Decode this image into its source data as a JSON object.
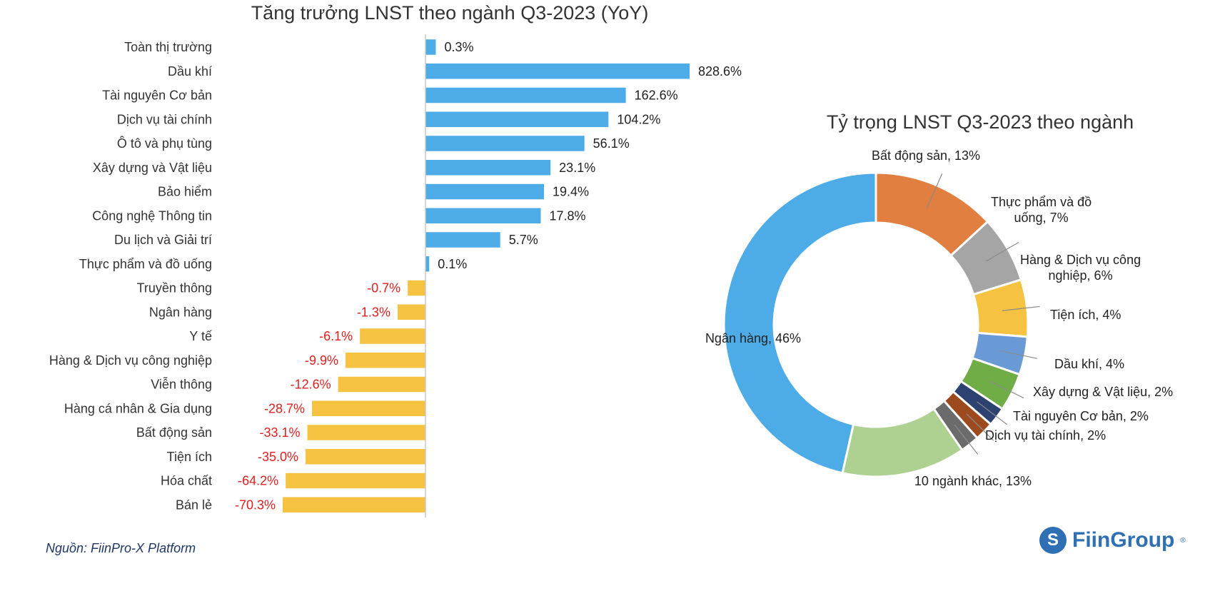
{
  "colors": {
    "positive_bar": "#4dabe8",
    "negative_bar": "#f5c242",
    "positive_label": "#222222",
    "negative_label": "#e31e1e",
    "text": "#333333",
    "source": "#1f3864",
    "brand": "#2f6fb3"
  },
  "chart_data": [
    {
      "type": "bar",
      "orientation": "horizontal",
      "title": "Tăng trưởng LNST theo ngành Q3-2023 (YoY)",
      "categories": [
        "Toàn thị trường",
        "Dầu khí",
        "Tài nguyên Cơ bản",
        "Dịch vụ tài chính",
        "Ô tô và phụ tùng",
        "Xây dựng và Vật liệu",
        "Bảo hiểm",
        "Công nghệ Thông tin",
        "Du lịch và Giải trí",
        "Thực phẩm và đồ uống",
        "Truyền thông",
        "Ngân hàng",
        "Y tế",
        "Hàng & Dịch vụ công nghiệp",
        "Viễn thông",
        "Hàng cá nhân & Gia dụng",
        "Bất động sản",
        "Tiện ích",
        "Hóa chất",
        "Bán lẻ"
      ],
      "values": [
        0.3,
        828.6,
        162.6,
        104.2,
        56.1,
        23.1,
        19.4,
        17.8,
        5.7,
        0.1,
        -0.7,
        -1.3,
        -6.1,
        -9.9,
        -12.6,
        -28.7,
        -33.1,
        -35.0,
        -64.2,
        -70.3
      ],
      "labels": [
        "0.3%",
        "828.6%",
        "162.6%",
        "104.2%",
        "56.1%",
        "23.1%",
        "19.4%",
        "17.8%",
        "5.7%",
        "0.1%",
        "-0.7%",
        "-1.3%",
        "-6.1%",
        "-9.9%",
        "-12.6%",
        "-28.7%",
        "-33.1%",
        "-35.0%",
        "-64.2%",
        "-70.3%"
      ],
      "scale": "symlog",
      "grid": false,
      "legend": "none"
    },
    {
      "type": "pie",
      "style": "donut",
      "title": "Tỷ trọng LNST Q3-2023 theo ngành",
      "slices": [
        {
          "label": "Bất động sản, 13%",
          "value": 13,
          "color": "#e07f3f"
        },
        {
          "label": "Thực phẩm và đồ uống, 7%",
          "value": 7,
          "color": "#a5a5a5"
        },
        {
          "label": "Hàng & Dịch vụ công nghiệp, 6%",
          "value": 6,
          "color": "#f5c242"
        },
        {
          "label": "Tiện ích, 4%",
          "value": 4,
          "color": "#6a9ad6"
        },
        {
          "label": "Dầu khí, 4%",
          "value": 4,
          "color": "#70ad47"
        },
        {
          "label": "Xây dựng & Vật liệu, 2%",
          "value": 2,
          "color": "#2e4272"
        },
        {
          "label": "Tài nguyên Cơ bản, 2%",
          "value": 2,
          "color": "#9e4a1f"
        },
        {
          "label": "Dịch vụ tài chính, 2%",
          "value": 2,
          "color": "#6b6b6b"
        },
        {
          "label": "10 ngành khác, 13%",
          "value": 13,
          "color": "#aed090"
        },
        {
          "label": "Ngân hàng, 46%",
          "value": 46,
          "color": "#4dabe8"
        }
      ],
      "legend": "none"
    }
  ],
  "footer": {
    "source": "Nguồn: FiinPro-X Platform",
    "brand": "FiinGroup",
    "brand_mark": "S",
    "brand_reg": "®"
  }
}
